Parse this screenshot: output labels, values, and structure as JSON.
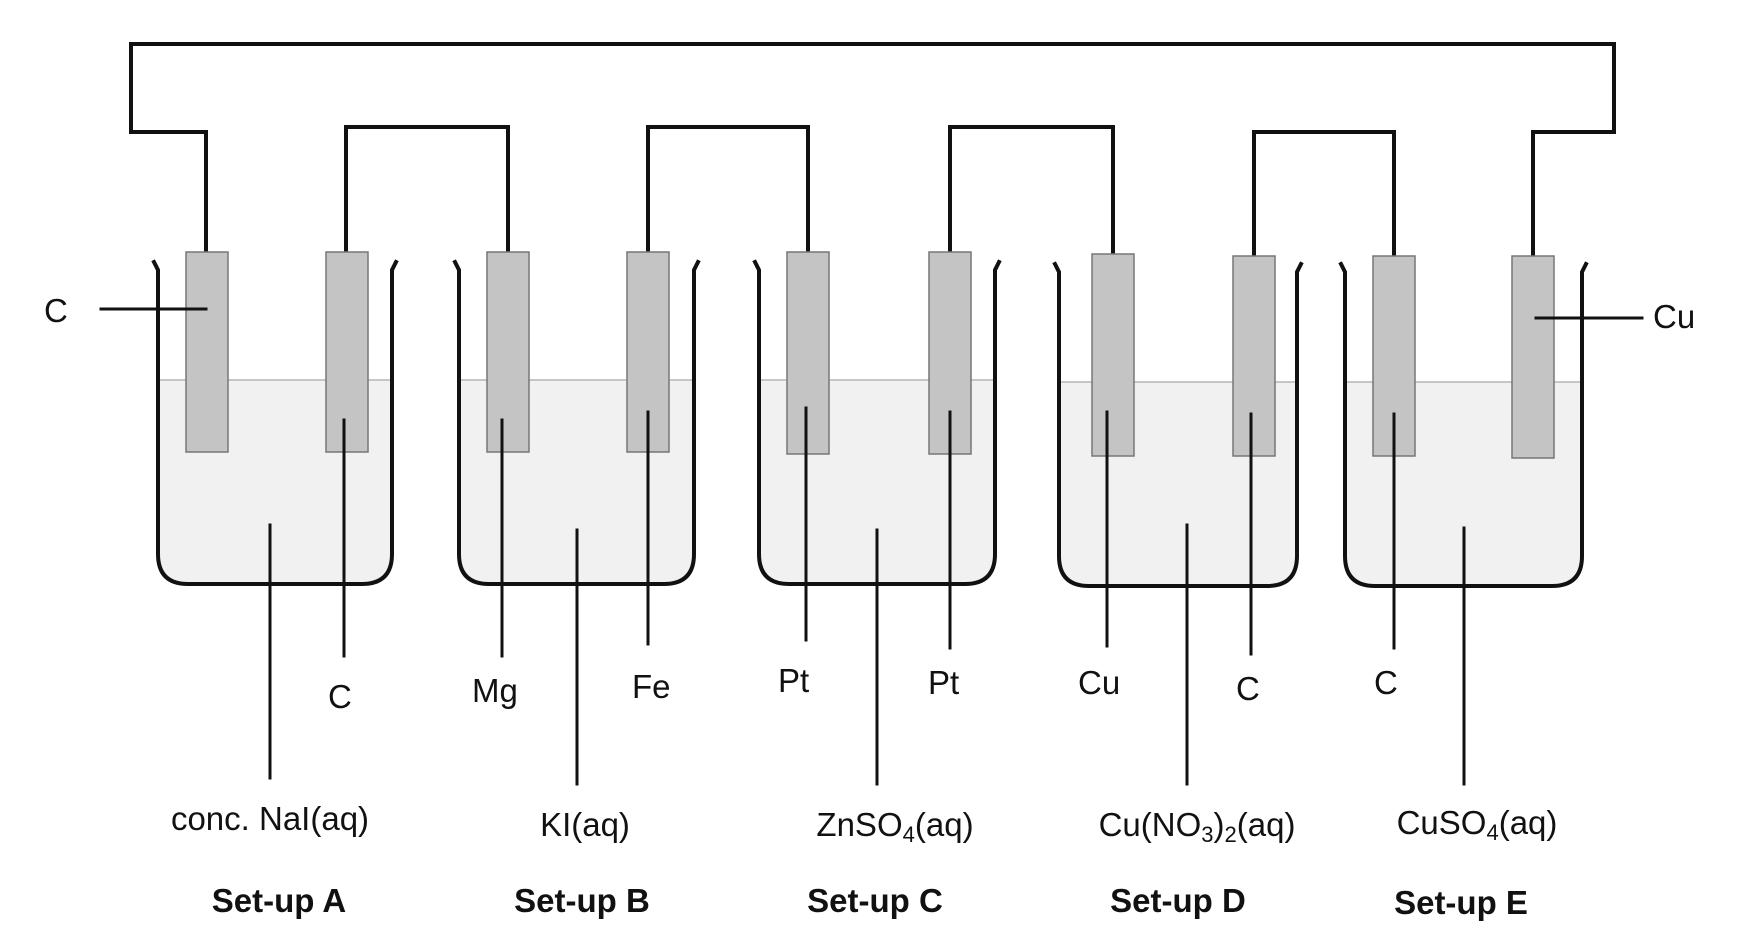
{
  "setups": [
    {
      "id": "A",
      "title": "Set-up A",
      "solution": "conc. NaI(aq)",
      "electrodes": [
        {
          "label": "C",
          "side": "left-outer"
        },
        {
          "label": "C",
          "side": "below"
        }
      ]
    },
    {
      "id": "B",
      "title": "Set-up B",
      "solution": "KI(aq)",
      "electrodes": [
        {
          "label": "Mg",
          "side": "below"
        },
        {
          "label": "Fe",
          "side": "below"
        }
      ]
    },
    {
      "id": "C",
      "title": "Set-up C",
      "solution_parts": [
        "ZnSO",
        "4",
        "(aq)"
      ],
      "electrodes": [
        {
          "label": "Pt",
          "side": "below"
        },
        {
          "label": "Pt",
          "side": "below"
        }
      ]
    },
    {
      "id": "D",
      "title": "Set-up D",
      "solution_parts": [
        "Cu(NO",
        "3",
        ")",
        "2",
        "(aq)"
      ],
      "electrodes": [
        {
          "label": "Cu",
          "side": "below"
        },
        {
          "label": "C",
          "side": "below"
        }
      ]
    },
    {
      "id": "E",
      "title": "Set-up E",
      "solution_parts": [
        "CuSO",
        "4",
        "(aq)"
      ],
      "electrodes": [
        {
          "label": "C",
          "side": "below"
        },
        {
          "label": "Cu",
          "side": "right-outer"
        }
      ]
    }
  ]
}
